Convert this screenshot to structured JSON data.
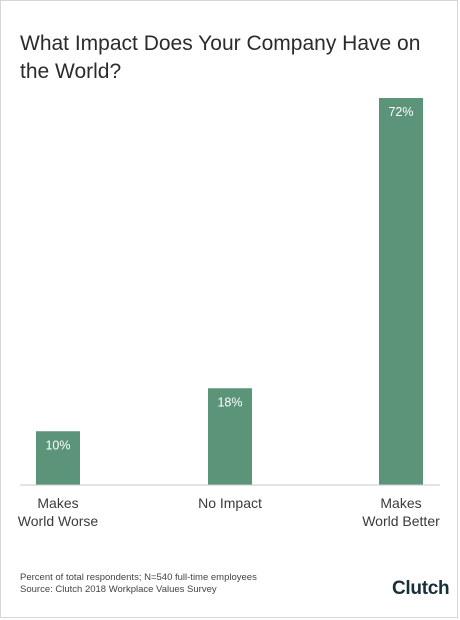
{
  "title": "What Impact Does Your Company Have on the World?",
  "footnote": {
    "line1": "Percent of total respondents; N=540 full-time employees",
    "line2": "Source: Clutch 2018 Workplace Values Survey"
  },
  "logo": "Clutch",
  "colors": {
    "bar": "#5c9479",
    "axis": "#c8c8c8",
    "label": "#3a3a3a",
    "value_label": "#ffffff",
    "logo_accent": "#ef4335"
  },
  "chart_data": {
    "type": "bar",
    "title": "What Impact Does Your Company Have on the World?",
    "categories": [
      [
        "Makes",
        "World Worse"
      ],
      [
        "No Impact"
      ],
      [
        "Makes",
        "World Better"
      ]
    ],
    "values": [
      10,
      18,
      72
    ],
    "value_labels": [
      "10%",
      "18%",
      "72%"
    ],
    "unit": "%",
    "ylim": [
      0,
      72
    ],
    "grid": false,
    "legend": "none"
  }
}
